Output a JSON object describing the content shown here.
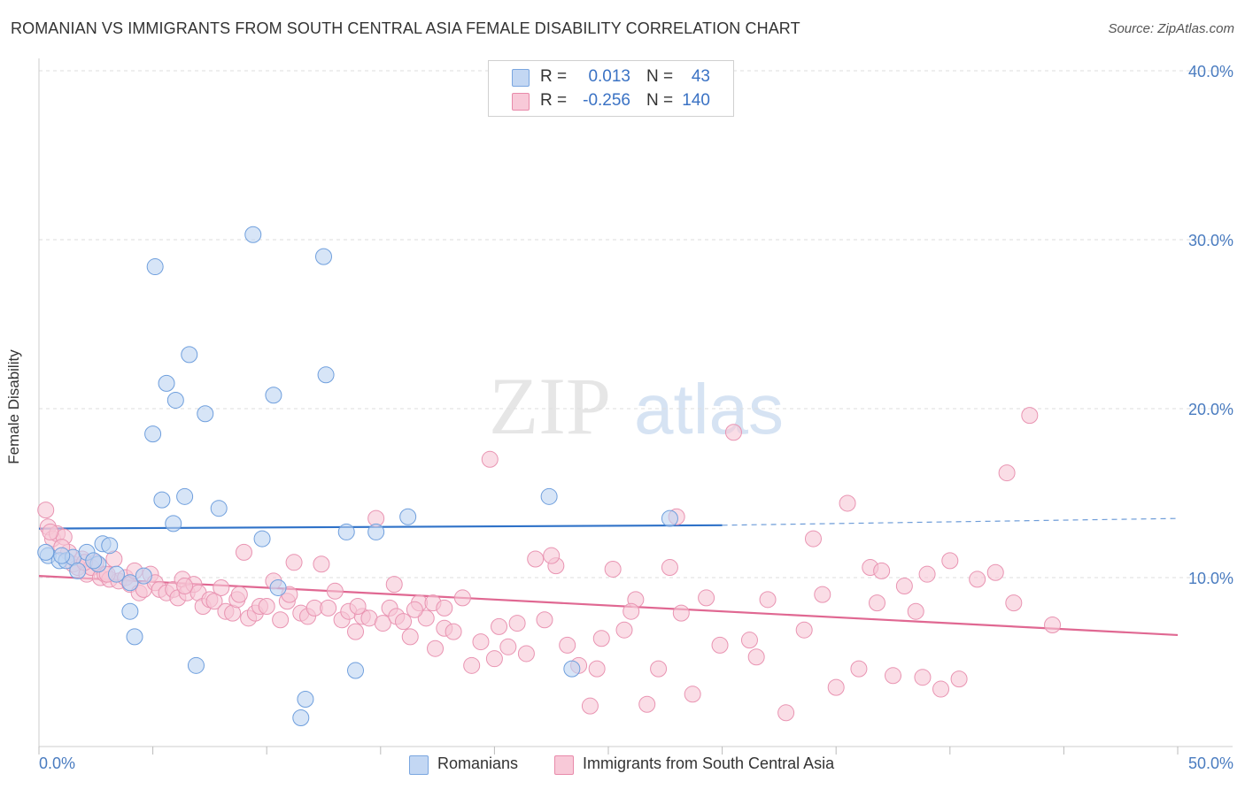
{
  "header": {
    "title": "ROMANIAN VS IMMIGRANTS FROM SOUTH CENTRAL ASIA FEMALE DISABILITY CORRELATION CHART",
    "source": "Source: ZipAtlas.com"
  },
  "watermark": {
    "zip": "ZIP",
    "atlas": "atlas"
  },
  "legend": {
    "rows": [
      {
        "r_label": "R =",
        "r_value": "0.013",
        "n_label": "N =",
        "n_value": "43",
        "color": "#7aa6e0",
        "fill": "#c3d7f3"
      },
      {
        "r_label": "R =",
        "r_value": "-0.256",
        "n_label": "N =",
        "n_value": "140",
        "color": "#e88aaa",
        "fill": "#f8c9d8"
      }
    ]
  },
  "bottom_legend": {
    "items": [
      {
        "label": "Romanians",
        "color": "#7aa6e0",
        "fill": "#c3d7f3"
      },
      {
        "label": "Immigrants from South Central Asia",
        "color": "#e88aaa",
        "fill": "#f8c9d8"
      }
    ]
  },
  "chart_data": {
    "type": "scatter",
    "title": "ROMANIAN VS IMMIGRANTS FROM SOUTH CENTRAL ASIA FEMALE DISABILITY CORRELATION CHART",
    "xlabel": "",
    "ylabel": "Female Disability",
    "xlim": [
      0,
      50
    ],
    "ylim": [
      0,
      40
    ],
    "x_tick_labels": [
      "0.0%",
      "50.0%"
    ],
    "y_ticks": [
      10,
      20,
      30,
      40
    ],
    "y_tick_labels": [
      "10.0%",
      "20.0%",
      "30.0%",
      "40.0%"
    ],
    "grid": true,
    "legend_position": "top-center",
    "series": [
      {
        "name": "Romanians",
        "color": "#6f9fdd",
        "fill": "#bcd3f1",
        "trend": {
          "x0": 0,
          "y0": 12.9,
          "x1": 30,
          "y1": 13.1,
          "dashed_to_x": 50,
          "dashed_to_y": 13.5,
          "color": "#2f72c8"
        },
        "points": [
          [
            0.4,
            11.3
          ],
          [
            0.9,
            11.0
          ],
          [
            1.2,
            11.0
          ],
          [
            1.5,
            11.2
          ],
          [
            1.7,
            10.4
          ],
          [
            2.1,
            11.5
          ],
          [
            2.6,
            10.8
          ],
          [
            2.8,
            12.0
          ],
          [
            3.1,
            11.9
          ],
          [
            3.4,
            10.2
          ],
          [
            4.0,
            9.7
          ],
          [
            4.0,
            8.0
          ],
          [
            4.2,
            6.5
          ],
          [
            4.6,
            10.1
          ],
          [
            5.0,
            18.5
          ],
          [
            5.1,
            28.4
          ],
          [
            5.4,
            14.6
          ],
          [
            5.6,
            21.5
          ],
          [
            5.9,
            13.2
          ],
          [
            6.0,
            20.5
          ],
          [
            6.4,
            14.8
          ],
          [
            6.6,
            23.2
          ],
          [
            6.9,
            4.8
          ],
          [
            7.3,
            19.7
          ],
          [
            7.9,
            14.1
          ],
          [
            9.4,
            30.3
          ],
          [
            9.8,
            12.3
          ],
          [
            10.3,
            20.8
          ],
          [
            10.5,
            9.4
          ],
          [
            11.5,
            1.7
          ],
          [
            11.7,
            2.8
          ],
          [
            12.5,
            29.0
          ],
          [
            12.6,
            22.0
          ],
          [
            13.5,
            12.7
          ],
          [
            13.9,
            4.5
          ],
          [
            14.8,
            12.7
          ],
          [
            16.2,
            13.6
          ],
          [
            22.4,
            14.8
          ],
          [
            23.4,
            4.6
          ],
          [
            27.7,
            13.5
          ],
          [
            0.3,
            11.5
          ],
          [
            1.0,
            11.3
          ],
          [
            2.4,
            11.0
          ]
        ]
      },
      {
        "name": "Immigrants from South Central Asia",
        "color": "#e994b2",
        "fill": "#f6c6d6",
        "trend": {
          "x0": 0,
          "y0": 10.1,
          "x1": 50,
          "y1": 6.6,
          "color": "#e06892"
        },
        "points": [
          [
            0.3,
            14.0
          ],
          [
            0.4,
            13.0
          ],
          [
            0.6,
            12.3
          ],
          [
            0.8,
            12.6
          ],
          [
            1.1,
            12.4
          ],
          [
            1.3,
            11.5
          ],
          [
            1.5,
            10.8
          ],
          [
            1.7,
            10.6
          ],
          [
            1.9,
            11.1
          ],
          [
            2.1,
            10.2
          ],
          [
            2.3,
            10.6
          ],
          [
            2.5,
            10.9
          ],
          [
            2.7,
            10.0
          ],
          [
            2.9,
            10.2
          ],
          [
            3.1,
            9.9
          ],
          [
            3.3,
            11.1
          ],
          [
            3.5,
            9.8
          ],
          [
            3.8,
            10.0
          ],
          [
            4.0,
            9.6
          ],
          [
            4.2,
            10.4
          ],
          [
            4.4,
            9.1
          ],
          [
            4.6,
            9.3
          ],
          [
            4.9,
            10.2
          ],
          [
            5.1,
            9.7
          ],
          [
            5.3,
            9.3
          ],
          [
            5.6,
            9.1
          ],
          [
            5.9,
            9.3
          ],
          [
            6.1,
            8.8
          ],
          [
            6.3,
            9.9
          ],
          [
            6.5,
            9.1
          ],
          [
            6.8,
            9.6
          ],
          [
            7.0,
            9.1
          ],
          [
            7.2,
            8.3
          ],
          [
            7.5,
            8.7
          ],
          [
            7.7,
            8.6
          ],
          [
            8.0,
            9.4
          ],
          [
            8.2,
            8.0
          ],
          [
            8.5,
            7.9
          ],
          [
            8.7,
            8.7
          ],
          [
            9.0,
            11.5
          ],
          [
            9.2,
            7.6
          ],
          [
            9.5,
            7.9
          ],
          [
            9.7,
            8.3
          ],
          [
            10.0,
            8.3
          ],
          [
            10.3,
            9.8
          ],
          [
            10.6,
            7.5
          ],
          [
            10.9,
            8.6
          ],
          [
            11.2,
            10.9
          ],
          [
            11.5,
            7.9
          ],
          [
            11.8,
            7.7
          ],
          [
            12.1,
            8.2
          ],
          [
            12.4,
            10.8
          ],
          [
            12.7,
            8.2
          ],
          [
            13.0,
            9.2
          ],
          [
            13.3,
            7.5
          ],
          [
            13.6,
            8.0
          ],
          [
            13.9,
            6.8
          ],
          [
            14.2,
            7.7
          ],
          [
            14.5,
            7.6
          ],
          [
            14.8,
            13.5
          ],
          [
            15.1,
            7.3
          ],
          [
            15.4,
            8.2
          ],
          [
            15.7,
            7.7
          ],
          [
            16.0,
            7.4
          ],
          [
            16.3,
            6.5
          ],
          [
            16.7,
            8.5
          ],
          [
            17.0,
            7.6
          ],
          [
            17.4,
            5.8
          ],
          [
            17.8,
            7.0
          ],
          [
            18.2,
            6.8
          ],
          [
            18.6,
            8.8
          ],
          [
            19.0,
            4.8
          ],
          [
            19.4,
            6.2
          ],
          [
            19.8,
            17.0
          ],
          [
            20.2,
            7.1
          ],
          [
            20.6,
            5.9
          ],
          [
            21.0,
            7.3
          ],
          [
            21.4,
            5.5
          ],
          [
            21.8,
            11.1
          ],
          [
            22.2,
            7.5
          ],
          [
            22.7,
            10.7
          ],
          [
            23.2,
            6.0
          ],
          [
            23.7,
            4.8
          ],
          [
            24.2,
            2.4
          ],
          [
            24.7,
            6.4
          ],
          [
            25.2,
            10.5
          ],
          [
            25.7,
            6.9
          ],
          [
            26.2,
            8.7
          ],
          [
            26.7,
            2.5
          ],
          [
            27.2,
            4.6
          ],
          [
            27.7,
            10.6
          ],
          [
            28.2,
            7.9
          ],
          [
            28.7,
            3.1
          ],
          [
            29.3,
            8.8
          ],
          [
            29.9,
            6.0
          ],
          [
            30.5,
            18.6
          ],
          [
            31.2,
            6.3
          ],
          [
            32.0,
            8.7
          ],
          [
            32.8,
            2.0
          ],
          [
            33.6,
            6.9
          ],
          [
            34.4,
            9.0
          ],
          [
            35.0,
            3.5
          ],
          [
            35.5,
            14.4
          ],
          [
            36.0,
            4.6
          ],
          [
            36.5,
            10.6
          ],
          [
            37.0,
            10.4
          ],
          [
            37.5,
            4.2
          ],
          [
            38.0,
            9.5
          ],
          [
            38.5,
            8.0
          ],
          [
            39.0,
            10.2
          ],
          [
            39.6,
            3.4
          ],
          [
            40.4,
            4.0
          ],
          [
            41.2,
            9.9
          ],
          [
            42.0,
            10.3
          ],
          [
            42.8,
            8.5
          ],
          [
            43.5,
            19.6
          ],
          [
            0.5,
            12.7
          ],
          [
            1.0,
            11.8
          ],
          [
            2.0,
            10.9
          ],
          [
            3.0,
            10.2
          ],
          [
            6.4,
            9.5
          ],
          [
            8.8,
            9.0
          ],
          [
            11.0,
            9.0
          ],
          [
            14.0,
            8.3
          ],
          [
            15.6,
            9.6
          ],
          [
            17.3,
            8.5
          ],
          [
            20.0,
            5.2
          ],
          [
            22.5,
            11.3
          ],
          [
            24.5,
            4.6
          ],
          [
            26.0,
            8.0
          ],
          [
            28.0,
            13.6
          ],
          [
            31.5,
            5.3
          ],
          [
            34.0,
            12.3
          ],
          [
            36.8,
            8.5
          ],
          [
            38.8,
            4.1
          ],
          [
            40.0,
            11.0
          ],
          [
            42.5,
            16.2
          ],
          [
            44.5,
            7.2
          ],
          [
            16.5,
            8.1
          ],
          [
            17.8,
            8.2
          ]
        ]
      }
    ]
  }
}
